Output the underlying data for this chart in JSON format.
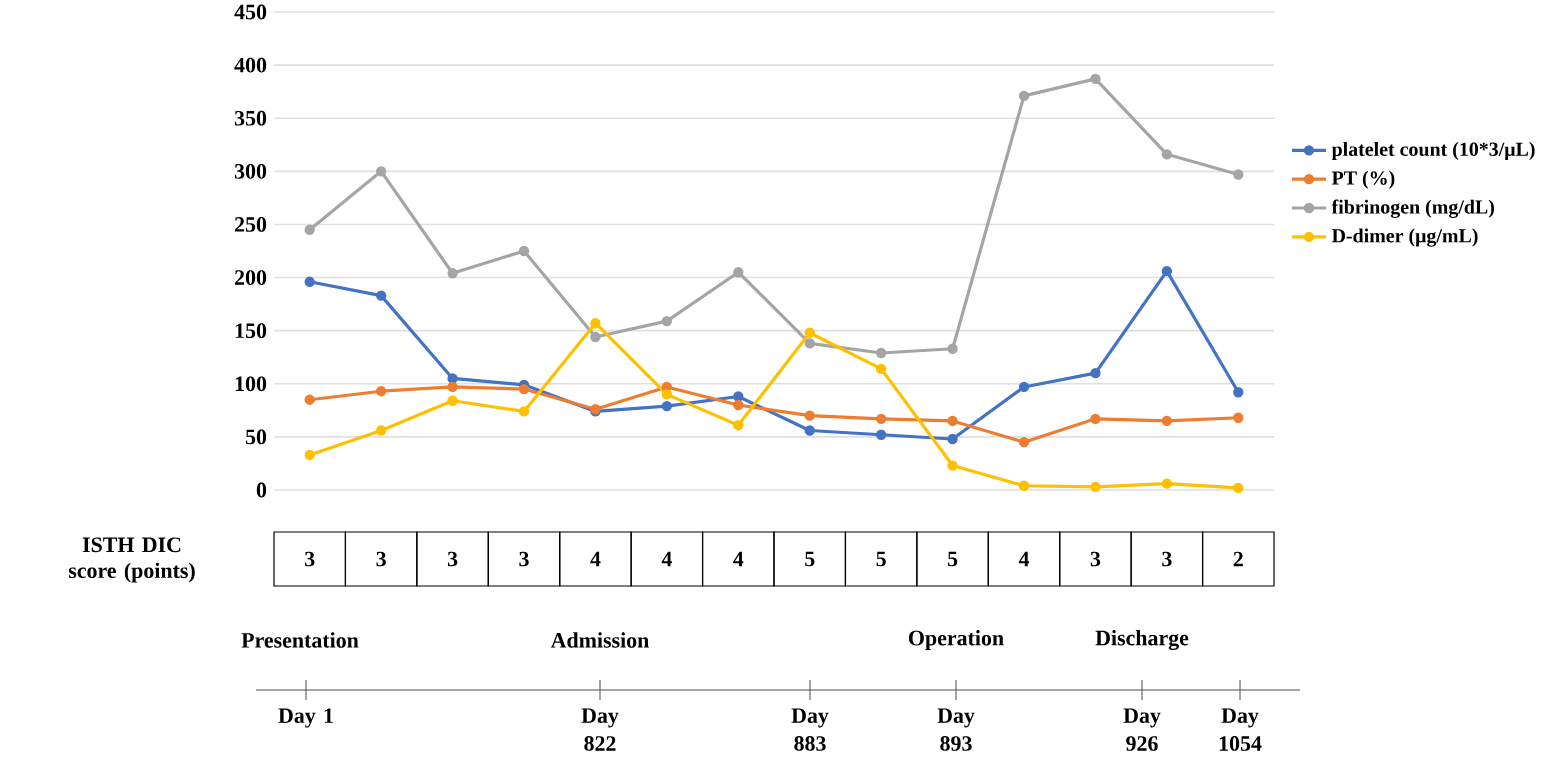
{
  "chart_data": {
    "type": "line",
    "categories": [
      null,
      null,
      null,
      null,
      null,
      null,
      null,
      null,
      null,
      null,
      null,
      null,
      null,
      null
    ],
    "series": [
      {
        "name": "platelet count (10*3/μL)",
        "color": "#4472c4",
        "values": [
          196,
          183,
          105,
          99,
          74,
          79,
          88,
          56,
          52,
          48,
          97,
          110,
          206,
          92
        ]
      },
      {
        "name": "PT (%)",
        "color": "#ed7d31",
        "values": [
          85,
          93,
          97,
          95,
          76,
          97,
          80,
          70,
          67,
          65,
          45,
          67,
          65,
          68
        ]
      },
      {
        "name": "fibrinogen (mg/dL)",
        "color": "#a5a5a5",
        "values": [
          245,
          300,
          204,
          225,
          144,
          159,
          205,
          138,
          129,
          133,
          371,
          387,
          316,
          297
        ]
      },
      {
        "name": "D-dimer (μg/mL)",
        "color": "#ffc000",
        "values": [
          33,
          56,
          84,
          74,
          157,
          90,
          61,
          148,
          114,
          23,
          4,
          3,
          6,
          2
        ]
      }
    ],
    "ylim": [
      0,
      450
    ],
    "yticks": [
      0,
      50,
      100,
      150,
      200,
      250,
      300,
      350,
      400,
      450
    ],
    "grid": "y",
    "legend": "right",
    "marker": "circle",
    "annotations": [
      "ISTH DIC score (points)",
      "3",
      "3",
      "3",
      "3",
      "4",
      "4",
      "4",
      "5",
      "5",
      "5",
      "4",
      "3",
      "3",
      "2",
      "Presentation",
      "Admission",
      "Operation",
      "Discharge",
      "Day 1",
      "Day 822",
      "Day 883",
      "Day 893",
      "Day 926",
      "Day 1054"
    ]
  }
}
